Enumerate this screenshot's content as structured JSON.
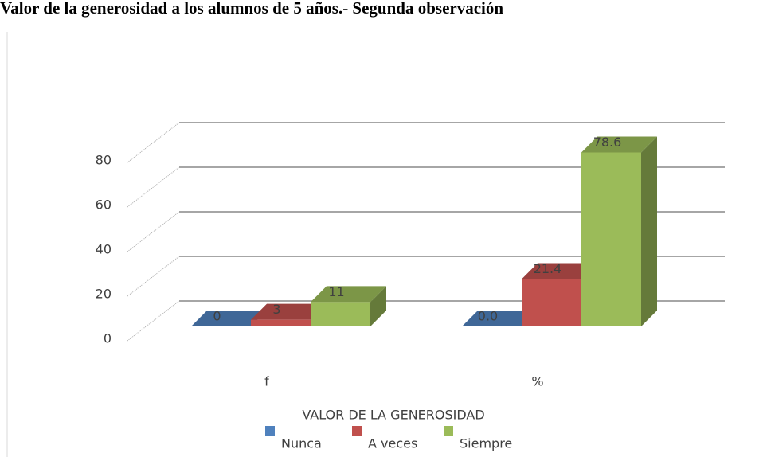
{
  "chart_data": {
    "type": "bar3d",
    "title": "Valor de la generosidad a los alumnos de 5 años.- Segunda observación",
    "categories": [
      "f",
      "%"
    ],
    "series": [
      {
        "name": "Nunca",
        "color": "#4f81bd",
        "values": [
          0,
          0
        ],
        "value_labels": [
          "0",
          "0.0"
        ]
      },
      {
        "name": "A veces",
        "color": "#c0504d",
        "values": [
          3,
          21.4
        ],
        "value_labels": [
          "3",
          "21.4"
        ]
      },
      {
        "name": "Siempre",
        "color": "#9bbb59",
        "values": [
          11,
          78.6
        ],
        "value_labels": [
          "11",
          "78.6"
        ]
      }
    ],
    "legend_title": "VALOR DE LA GENEROSIDAD",
    "ylim": [
      0,
      80
    ],
    "yticks": [
      0,
      20,
      40,
      60,
      80
    ],
    "grid": true,
    "legend": "bottom"
  }
}
